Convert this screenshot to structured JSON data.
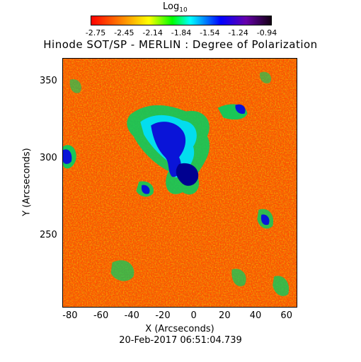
{
  "colorbar": {
    "title_main": "Log",
    "title_sub": "10",
    "ticks": [
      "-2.75",
      "-2.45",
      "-2.14",
      "-1.84",
      "-1.54",
      "-1.24",
      "-0.94"
    ],
    "colors": [
      "#ff0000",
      "#ff8000",
      "#ffff00",
      "#00ff00",
      "#00ffff",
      "#0000ff",
      "#1a0020"
    ]
  },
  "title": "Hinode SOT/SP - MERLIN : Degree of Polarization",
  "x_axis": {
    "label": "X (Arcseconds)",
    "ticks": [
      "-80",
      "-60",
      "-40",
      "-20",
      "0",
      "20",
      "40",
      "60"
    ],
    "range": [
      -85,
      67
    ]
  },
  "y_axis": {
    "label": "Y (Arcseconds)",
    "ticks": [
      "250",
      "300",
      "350"
    ],
    "range": [
      203,
      365
    ]
  },
  "timestamp": "20-Feb-2017 06:51:04.739",
  "image_description_colors": {
    "background": "#ff5a00",
    "network": "#0033ff"
  }
}
